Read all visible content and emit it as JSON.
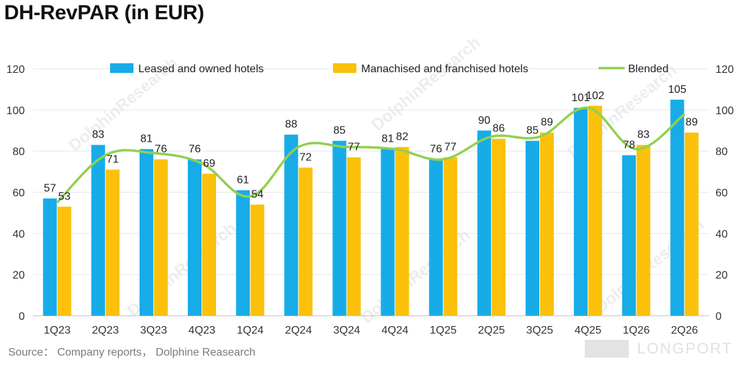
{
  "title": "DH-RevPAR (in EUR)",
  "source": "Source： Company reports， Dolphine Reasearch",
  "watermark": "DolphinResearch",
  "brand_watermark": "LONGPORT",
  "chart_data": {
    "type": "bar",
    "categories": [
      "1Q23",
      "2Q23",
      "3Q23",
      "4Q23",
      "1Q24",
      "2Q24",
      "3Q24",
      "4Q24",
      "1Q25",
      "2Q25",
      "3Q25",
      "4Q25",
      "1Q26",
      "2Q26"
    ],
    "series": [
      {
        "name": "Leased and owned hotels",
        "type": "bar",
        "color": "#17ace8",
        "values": [
          57,
          83,
          81,
          76,
          61,
          88,
          85,
          81,
          76,
          90,
          85,
          101,
          78,
          105
        ]
      },
      {
        "name": "Manachised and franchised hotels",
        "type": "bar",
        "color": "#fbc10b",
        "values": [
          53,
          71,
          76,
          69,
          54,
          72,
          77,
          82,
          77,
          86,
          89,
          102,
          83,
          89
        ]
      },
      {
        "name": "Blended",
        "type": "line",
        "color": "#92d050",
        "values": [
          55,
          78,
          79,
          74,
          58,
          82,
          82,
          81,
          76,
          87,
          87,
          101,
          81,
          98
        ]
      }
    ],
    "ylim": [
      0,
      120
    ],
    "yticks": [
      0,
      20,
      40,
      60,
      80,
      100,
      120
    ],
    "secondary_ylim": [
      0,
      120
    ],
    "legend_position": "top",
    "grid": true
  }
}
